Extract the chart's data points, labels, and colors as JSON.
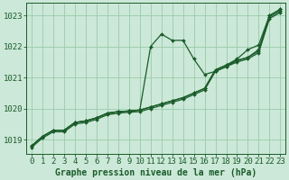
{
  "title": "Graphe pression niveau de la mer (hPa)",
  "bg_color": "#cce8d8",
  "grid_color": "#99ccaa",
  "line_color": "#1a5c2a",
  "hours": [
    0,
    1,
    2,
    3,
    4,
    5,
    6,
    7,
    8,
    9,
    10,
    11,
    12,
    13,
    14,
    15,
    16,
    17,
    18,
    19,
    20,
    21,
    22,
    23
  ],
  "series": [
    [
      1018.8,
      1019.1,
      1019.3,
      1019.3,
      1019.55,
      1019.6,
      1019.7,
      1019.85,
      1019.9,
      1019.92,
      1019.95,
      1022.0,
      1022.4,
      1022.2,
      1022.2,
      1021.6,
      1021.1,
      1021.2,
      1021.35,
      1021.55,
      1021.65,
      1021.9,
      1023.0,
      1023.2
    ],
    [
      1018.8,
      1019.1,
      1019.3,
      1019.3,
      1019.55,
      1019.6,
      1019.7,
      1019.85,
      1019.9,
      1019.92,
      1019.95,
      1020.05,
      1020.15,
      1020.25,
      1020.35,
      1020.5,
      1020.65,
      1021.25,
      1021.4,
      1021.55,
      1021.65,
      1021.85,
      1022.95,
      1023.15
    ],
    [
      1018.8,
      1019.1,
      1019.3,
      1019.3,
      1019.55,
      1019.6,
      1019.7,
      1019.85,
      1019.9,
      1019.92,
      1019.95,
      1020.05,
      1020.15,
      1020.25,
      1020.35,
      1020.5,
      1020.65,
      1021.25,
      1021.4,
      1021.6,
      1021.9,
      1022.05,
      1023.0,
      1023.2
    ],
    [
      1018.75,
      1019.05,
      1019.25,
      1019.25,
      1019.5,
      1019.55,
      1019.65,
      1019.8,
      1019.85,
      1019.88,
      1019.9,
      1020.0,
      1020.1,
      1020.2,
      1020.3,
      1020.45,
      1020.6,
      1021.2,
      1021.35,
      1021.5,
      1021.6,
      1021.8,
      1022.9,
      1023.1
    ]
  ],
  "ylim": [
    1018.55,
    1023.4
  ],
  "yticks": [
    1019,
    1020,
    1021,
    1022,
    1023
  ],
  "xlim": [
    -0.5,
    23.5
  ],
  "xticks": [
    0,
    1,
    2,
    3,
    4,
    5,
    6,
    7,
    8,
    9,
    10,
    11,
    12,
    13,
    14,
    15,
    16,
    17,
    18,
    19,
    20,
    21,
    22,
    23
  ],
  "tick_fontsize": 6.5,
  "title_fontsize": 7,
  "marker": "D",
  "markersize": 2.0,
  "linewidth": 0.9
}
